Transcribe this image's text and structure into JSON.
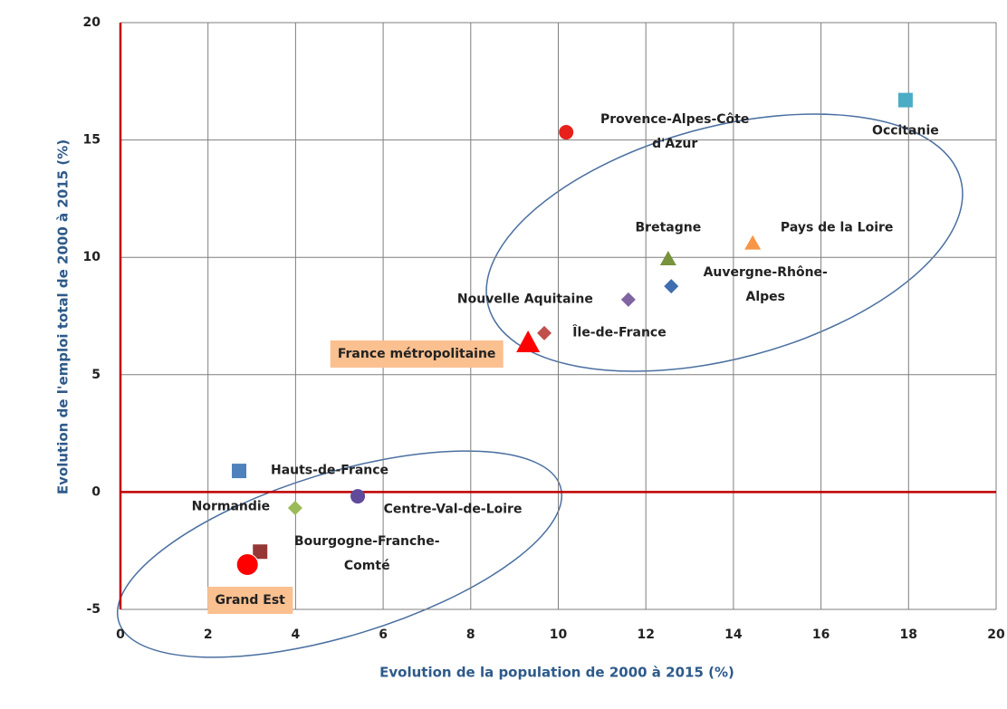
{
  "chart_data": {
    "type": "scatter",
    "xlabel": "Evolution  de la population  de 2000 à 2015 (%)",
    "ylabel": "Evolution de l'emploi total de 2000 à 2015 (%)",
    "xlim": [
      0,
      20
    ],
    "xticks": [
      0,
      2,
      4,
      6,
      8,
      10,
      12,
      14,
      16,
      18,
      20
    ],
    "ylim": [
      -5,
      20
    ],
    "yticks": [
      -5,
      0,
      5,
      10,
      15,
      20
    ],
    "grid": true,
    "series": [
      {
        "name": "Provence-Alpes-Côte d'Azur",
        "color": "#e8201c",
        "marker": "circle",
        "x": [
          10.18
        ],
        "values": [
          15.33
        ]
      },
      {
        "name": "Occitanie",
        "color": "#4bacc6",
        "marker": "square",
        "x": [
          17.93
        ],
        "values": [
          16.7
        ]
      },
      {
        "name": "Pays de  la Loire",
        "color": "#f79646",
        "marker": "triangle",
        "x": [
          14.44
        ],
        "values": [
          10.6
        ]
      },
      {
        "name": "Bretagne",
        "color": "#77933c",
        "marker": "triangle",
        "x": [
          12.51
        ],
        "values": [
          9.93
        ]
      },
      {
        "name": "Auvergne-Rhône-Alpes",
        "color": "#3f6fb0",
        "marker": "diamond",
        "x": [
          12.58
        ],
        "values": [
          8.77
        ]
      },
      {
        "name": "Nouvelle Aquitaine",
        "color": "#8064a2",
        "marker": "diamond",
        "x": [
          11.6
        ],
        "values": [
          8.2
        ]
      },
      {
        "name": "Île-de-France",
        "color": "#c0504d",
        "marker": "diamond",
        "x": [
          9.68
        ],
        "values": [
          6.77
        ]
      },
      {
        "name": "France métropolitaine",
        "color": "#ff0000",
        "marker": "triangle",
        "highlight": true,
        "x": [
          9.31
        ],
        "values": [
          6.38
        ]
      },
      {
        "name": "Hauts-de-France",
        "color": "#4f81bd",
        "marker": "square",
        "x": [
          2.71
        ],
        "values": [
          0.9
        ]
      },
      {
        "name": "Normandie",
        "color": "#9bbb59",
        "marker": "diamond",
        "x": [
          3.99
        ],
        "values": [
          -0.68
        ]
      },
      {
        "name": "Centre-Val-de-Loire",
        "color": "#604a9b",
        "marker": "circle",
        "x": [
          5.42
        ],
        "values": [
          -0.18
        ]
      },
      {
        "name": "Bourgogne-Franche-Comté",
        "color": "#953735",
        "marker": "square",
        "x": [
          3.19
        ],
        "values": [
          -2.54
        ]
      },
      {
        "name": "Grand Est",
        "color": "#ff0000",
        "marker": "circle",
        "highlight": true,
        "x": [
          2.9
        ],
        "values": [
          -3.09
        ]
      }
    ]
  }
}
